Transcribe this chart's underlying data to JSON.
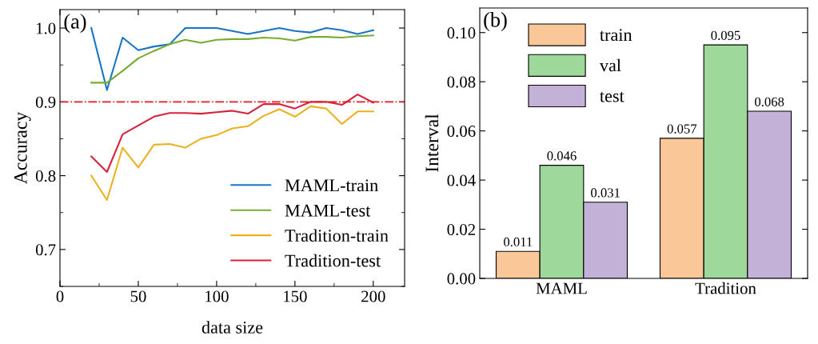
{
  "chart_data": [
    {
      "type": "line",
      "xlabel": "data size",
      "ylabel": "Accuracy",
      "annotations": [
        "(a)"
      ],
      "x": [
        20,
        30,
        40,
        50,
        60,
        70,
        80,
        90,
        100,
        110,
        120,
        130,
        140,
        150,
        160,
        170,
        180,
        190,
        200
      ],
      "series": [
        {
          "name": "MAML-train",
          "color": "#1874c4",
          "values": [
            1.0,
            0.916,
            0.987,
            0.97,
            0.975,
            0.978,
            1.0,
            1.0,
            1.0,
            0.996,
            0.992,
            0.996,
            1.0,
            0.996,
            0.994,
            1.0,
            0.997,
            0.992,
            0.997
          ]
        },
        {
          "name": "MAML-test",
          "color": "#77ac30",
          "values": [
            0.926,
            0.926,
            0.942,
            0.959,
            0.969,
            0.978,
            0.984,
            0.98,
            0.984,
            0.985,
            0.985,
            0.987,
            0.986,
            0.983,
            0.988,
            0.988,
            0.987,
            0.989,
            0.99
          ]
        },
        {
          "name": "Tradition-train",
          "color": "#edb120",
          "values": [
            0.8,
            0.767,
            0.838,
            0.811,
            0.842,
            0.843,
            0.838,
            0.85,
            0.855,
            0.864,
            0.867,
            0.881,
            0.89,
            0.88,
            0.894,
            0.891,
            0.87,
            0.887,
            0.887
          ]
        },
        {
          "name": "Tradition-test",
          "color": "#d9203d",
          "values": [
            0.826,
            0.805,
            0.856,
            0.868,
            0.88,
            0.885,
            0.885,
            0.884,
            0.886,
            0.888,
            0.884,
            0.897,
            0.897,
            0.891,
            0.9,
            0.9,
            0.896,
            0.91,
            0.899
          ]
        }
      ],
      "xlim": [
        0,
        220
      ],
      "xticks": [
        0,
        50,
        100,
        150,
        200
      ],
      "ylim": [
        0.65,
        1.025
      ],
      "yticks": [
        0.7,
        0.8,
        0.9,
        {
          "value": 1,
          "label": "1.0"
        }
      ],
      "ref_lines": [
        {
          "axis": "y",
          "value": 0.9,
          "color": "#e8191e",
          "line_style": "dashdot"
        }
      ],
      "legend": "bottom right",
      "grid": false,
      "line_style": "solid",
      "marker": "none"
    },
    {
      "type": "bar",
      "ylabel": "Interval",
      "annotations": [
        "(b)"
      ],
      "categories": [
        "MAML",
        "Tradition"
      ],
      "series": [
        {
          "name": "train",
          "color": "#fac898",
          "values": [
            0.011,
            0.057
          ]
        },
        {
          "name": "val",
          "color": "#9fd89b",
          "values": [
            0.046,
            0.095
          ]
        },
        {
          "name": "test",
          "color": "#c3b1d8",
          "values": [
            0.031,
            0.068
          ]
        }
      ],
      "ylim": [
        0,
        0.11
      ],
      "yticks": [
        {
          "value": 0,
          "label": "0.00"
        },
        {
          "value": 0.02,
          "label": "0.02"
        },
        {
          "value": 0.04,
          "label": "0.04"
        },
        {
          "value": 0.06,
          "label": "0.06"
        },
        {
          "value": 0.08,
          "label": "0.08"
        },
        {
          "value": 0.1,
          "label": "0.10"
        }
      ],
      "data_labels": true,
      "legend": "top left",
      "grid": false
    }
  ]
}
